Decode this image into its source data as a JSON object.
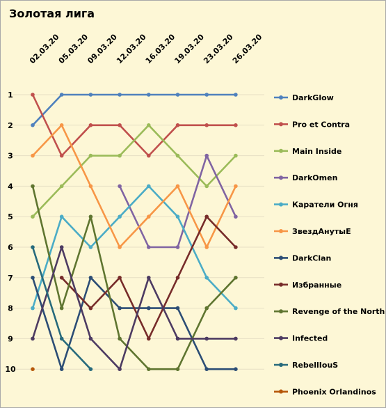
{
  "chart_data": {
    "type": "line",
    "title": "Золотая лига",
    "xlabel": "",
    "ylabel": "",
    "x": [
      "02.03.20",
      "05.03.20",
      "09.03.20",
      "12.03.20",
      "16.03.20",
      "19.03.20",
      "23.03.20",
      "26.03.20"
    ],
    "y_ticks": [
      "1",
      "2",
      "3",
      "4",
      "5",
      "6",
      "7",
      "8",
      "9",
      "10"
    ],
    "ylim": [
      10,
      1
    ],
    "y_reversed": true,
    "grid": true,
    "legend_position": "right",
    "series": [
      {
        "name": "DarkGlow",
        "color": "#4f81bd",
        "values": [
          2,
          1,
          1,
          1,
          1,
          1,
          1,
          1
        ]
      },
      {
        "name": "Pro et Contra",
        "color": "#c0504d",
        "values": [
          1,
          3,
          2,
          2,
          3,
          2,
          2,
          2
        ]
      },
      {
        "name": "Main Inside",
        "color": "#9bbb59",
        "values": [
          5,
          4,
          3,
          3,
          2,
          3,
          4,
          3
        ]
      },
      {
        "name": "DarkOmen",
        "color": "#8064a2",
        "values": [
          null,
          null,
          null,
          4,
          6,
          6,
          3,
          5
        ]
      },
      {
        "name": "Каратели Огня",
        "color": "#4bacc6",
        "values": [
          8,
          5,
          6,
          5,
          4,
          5,
          7,
          8
        ]
      },
      {
        "name": "ЗвездАнутыЕ",
        "color": "#f79646",
        "values": [
          3,
          2,
          4,
          6,
          5,
          4,
          6,
          4
        ]
      },
      {
        "name": "DarkClan",
        "color": "#2c4d75",
        "values": [
          7,
          10,
          7,
          8,
          8,
          8,
          10,
          10
        ]
      },
      {
        "name": "Избранные",
        "color": "#772c2a",
        "values": [
          null,
          7,
          8,
          7,
          9,
          7,
          5,
          6
        ]
      },
      {
        "name": "Revenge of the North",
        "color": "#5f7530",
        "values": [
          4,
          8,
          5,
          9,
          10,
          10,
          8,
          7
        ]
      },
      {
        "name": "Infected",
        "color": "#4d3b62",
        "values": [
          9,
          6,
          9,
          10,
          7,
          9,
          9,
          9
        ]
      },
      {
        "name": "RebellIouS",
        "color": "#276a7c",
        "values": [
          6,
          9,
          10,
          null,
          null,
          null,
          null,
          null
        ]
      },
      {
        "name": "Phoenix Orlandinos",
        "color": "#b65708",
        "values": [
          10,
          null,
          null,
          null,
          null,
          null,
          null,
          null
        ]
      }
    ]
  }
}
